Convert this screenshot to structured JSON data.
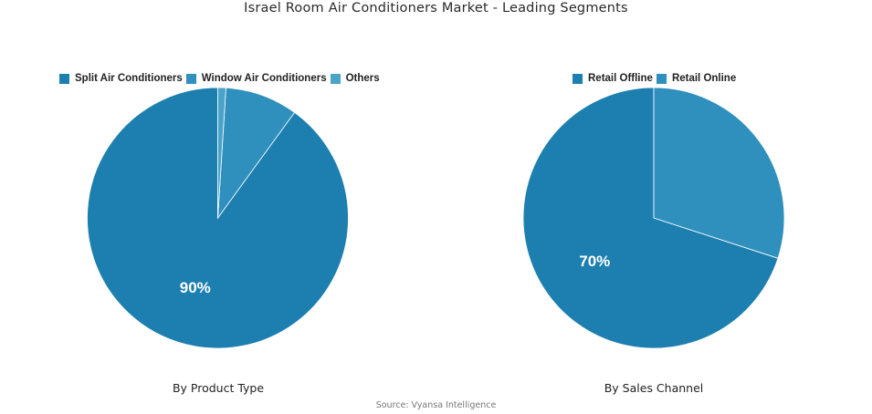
{
  "title": "Israel Room Air Conditioners Market - Leading Segments",
  "source": "Source: Vyansa Intelligence",
  "colors": {
    "primary": "#1d7fb0",
    "secondary": "#2f8fbd",
    "tertiary": "#4aa3c9"
  },
  "chart_data": [
    {
      "type": "pie",
      "caption": "By Product Type",
      "categories": [
        "Split Air Conditioners",
        "Window Air Conditioners",
        "Others"
      ],
      "values": [
        90,
        9,
        1
      ],
      "data_labels": [
        "90%",
        "",
        ""
      ],
      "legend_position": "top"
    },
    {
      "type": "pie",
      "caption": "By Sales Channel",
      "categories": [
        "Retail Offline",
        "Retail Online"
      ],
      "values": [
        70,
        30
      ],
      "data_labels": [
        "70%",
        ""
      ],
      "legend_position": "top"
    }
  ]
}
